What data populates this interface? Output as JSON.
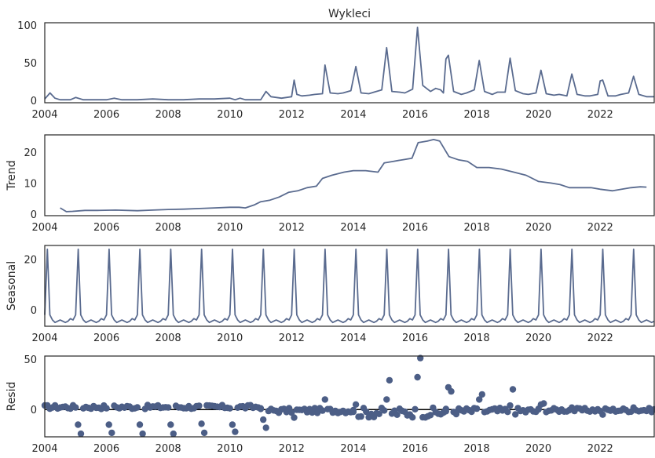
{
  "chart_data": [
    {
      "type": "line",
      "title": "Wykleci",
      "ylabel": "",
      "xlim": [
        2004.0,
        2023.75
      ],
      "ylim": [
        -3,
        103
      ],
      "yticks": [
        0,
        50,
        100
      ],
      "xticks": [
        2004,
        2006,
        2008,
        2010,
        2012,
        2014,
        2016,
        2018,
        2020,
        2022
      ],
      "x": [
        2004.0,
        2004.17,
        2004.33,
        2004.5,
        2004.67,
        2004.75,
        2004.83,
        2005.0,
        2005.25,
        2005.5,
        2005.58,
        2005.75,
        2006.0,
        2006.25,
        2006.5,
        2007.0,
        2007.5,
        2008.0,
        2008.5,
        2009.0,
        2009.5,
        2010.0,
        2010.17,
        2010.33,
        2010.5,
        2011.0,
        2011.17,
        2011.33,
        2011.67,
        2012.0,
        2012.08,
        2012.17,
        2012.33,
        2012.58,
        2012.75,
        2013.0,
        2013.08,
        2013.25,
        2013.5,
        2013.67,
        2013.92,
        2014.08,
        2014.25,
        2014.5,
        2014.67,
        2014.92,
        2015.08,
        2015.25,
        2015.5,
        2015.67,
        2015.92,
        2016.08,
        2016.25,
        2016.5,
        2016.67,
        2016.83,
        2016.92,
        2017.0,
        2017.08,
        2017.25,
        2017.5,
        2017.67,
        2017.92,
        2018.08,
        2018.25,
        2018.5,
        2018.67,
        2018.92,
        2019.08,
        2019.25,
        2019.5,
        2019.67,
        2019.92,
        2020.08,
        2020.25,
        2020.5,
        2020.67,
        2020.92,
        2021.08,
        2021.25,
        2021.5,
        2021.67,
        2021.92,
        2022.0,
        2022.08,
        2022.25,
        2022.5,
        2022.67,
        2022.92,
        2023.08,
        2023.25,
        2023.5,
        2023.75
      ],
      "y": [
        2,
        10,
        3,
        1,
        1,
        1,
        1,
        4,
        1,
        1,
        1,
        1,
        1,
        3,
        1,
        1,
        2,
        1,
        1,
        2,
        2,
        3,
        1,
        3,
        1,
        1,
        12,
        5,
        3,
        5,
        27,
        8,
        6,
        7,
        8,
        9,
        47,
        10,
        9,
        10,
        13,
        45,
        10,
        9,
        11,
        14,
        70,
        12,
        11,
        10,
        15,
        97,
        20,
        12,
        16,
        14,
        10,
        55,
        60,
        12,
        8,
        10,
        14,
        53,
        12,
        8,
        11,
        11,
        56,
        13,
        9,
        8,
        10,
        40,
        9,
        7,
        8,
        6,
        35,
        8,
        6,
        6,
        8,
        26,
        27,
        6,
        6,
        8,
        10,
        32,
        8,
        5,
        5
      ]
    },
    {
      "type": "line",
      "title": "",
      "ylabel": "Trend",
      "xlim": [
        2004.0,
        2023.75
      ],
      "ylim": [
        -0.5,
        25.5
      ],
      "yticks": [
        0,
        10,
        20
      ],
      "xticks": [
        2004,
        2006,
        2008,
        2010,
        2012,
        2014,
        2016,
        2018,
        2020,
        2022
      ],
      "x": [
        2004.5,
        2004.7,
        2004.9,
        2005.3,
        2005.7,
        2006.3,
        2007.0,
        2007.5,
        2008.0,
        2008.5,
        2009.0,
        2009.5,
        2010.0,
        2010.3,
        2010.5,
        2010.8,
        2011.0,
        2011.3,
        2011.6,
        2011.9,
        2012.2,
        2012.5,
        2012.8,
        2013.0,
        2013.3,
        2013.7,
        2014.0,
        2014.4,
        2014.8,
        2015.0,
        2015.3,
        2015.6,
        2015.9,
        2016.1,
        2016.4,
        2016.6,
        2016.8,
        2017.1,
        2017.4,
        2017.7,
        2018.0,
        2018.4,
        2018.8,
        2019.2,
        2019.6,
        2020.0,
        2020.4,
        2020.7,
        2021.0,
        2021.4,
        2021.7,
        2022.0,
        2022.4,
        2022.7,
        2023.0,
        2023.3,
        2023.5
      ],
      "y": [
        2.0,
        0.8,
        0.9,
        1.2,
        1.2,
        1.3,
        1.1,
        1.3,
        1.5,
        1.6,
        1.8,
        2.0,
        2.2,
        2.2,
        2.0,
        3.0,
        4.0,
        4.5,
        5.5,
        7.0,
        7.5,
        8.5,
        9.0,
        11.5,
        12.5,
        13.5,
        14.0,
        14.0,
        13.5,
        16.5,
        17.0,
        17.5,
        18.0,
        23.0,
        23.5,
        24.0,
        23.5,
        18.5,
        17.5,
        17.0,
        15.0,
        15.0,
        14.5,
        13.5,
        12.5,
        10.5,
        10.0,
        9.5,
        8.5,
        8.5,
        8.5,
        8.0,
        7.5,
        8.0,
        8.5,
        8.8,
        8.7
      ]
    },
    {
      "type": "line",
      "title": "",
      "ylabel": "Seasonal",
      "xlim": [
        2004.0,
        2023.75
      ],
      "ylim": [
        -6.5,
        25.5
      ],
      "yticks": [
        0,
        20
      ],
      "xticks": [
        2004,
        2006,
        2008,
        2010,
        2012,
        2014,
        2016,
        2018,
        2020,
        2022
      ],
      "pattern_period_years": 1,
      "pattern_month_values": [
        -2.0,
        24.0,
        -2.0,
        -4.0,
        -5.0,
        -4.5,
        -4.0,
        -4.5,
        -5.0,
        -4.5,
        -3.5,
        -4.0
      ]
    },
    {
      "type": "scatter",
      "title": "",
      "ylabel": "Resid",
      "xlim": [
        2004.0,
        2023.75
      ],
      "ylim": [
        -27,
        53
      ],
      "yticks": [
        0,
        50
      ],
      "xticks": [
        2004,
        2006,
        2008,
        2010,
        2012,
        2014,
        2016,
        2018,
        2020,
        2022
      ],
      "zero_line": true,
      "outliers": [
        {
          "x": 2005.08,
          "y": -15
        },
        {
          "x": 2005.17,
          "y": -24
        },
        {
          "x": 2006.08,
          "y": -15
        },
        {
          "x": 2006.17,
          "y": -23
        },
        {
          "x": 2007.08,
          "y": -15
        },
        {
          "x": 2007.17,
          "y": -24
        },
        {
          "x": 2008.08,
          "y": -15
        },
        {
          "x": 2008.17,
          "y": -24
        },
        {
          "x": 2009.08,
          "y": -14
        },
        {
          "x": 2009.17,
          "y": -23
        },
        {
          "x": 2010.08,
          "y": -15
        },
        {
          "x": 2010.17,
          "y": -22
        },
        {
          "x": 2011.08,
          "y": -10
        },
        {
          "x": 2011.17,
          "y": -18
        },
        {
          "x": 2012.08,
          "y": -8
        },
        {
          "x": 2013.08,
          "y": 10
        },
        {
          "x": 2014.08,
          "y": 5
        },
        {
          "x": 2015.08,
          "y": 10
        },
        {
          "x": 2015.17,
          "y": 29
        },
        {
          "x": 2016.08,
          "y": 32
        },
        {
          "x": 2016.17,
          "y": 51
        },
        {
          "x": 2017.08,
          "y": 22
        },
        {
          "x": 2017.17,
          "y": 18
        },
        {
          "x": 2018.08,
          "y": 10
        },
        {
          "x": 2018.17,
          "y": 15
        },
        {
          "x": 2019.08,
          "y": 4
        },
        {
          "x": 2019.17,
          "y": 20
        },
        {
          "x": 2020.08,
          "y": 5
        },
        {
          "x": 2020.17,
          "y": 6
        },
        {
          "x": 2021.08,
          "y": 2
        },
        {
          "x": 2022.08,
          "y": -5
        },
        {
          "x": 2023.08,
          "y": 2
        }
      ],
      "bulk_band": [
        {
          "from": 2004.0,
          "to": 2011.0,
          "center": 2.5,
          "spread": 2.0
        },
        {
          "from": 2011.0,
          "to": 2014.0,
          "center": -1.0,
          "spread": 2.5
        },
        {
          "from": 2014.0,
          "to": 2017.0,
          "center": -3.0,
          "spread": 5.0
        },
        {
          "from": 2017.0,
          "to": 2020.0,
          "center": -1.5,
          "spread": 3.5
        },
        {
          "from": 2020.0,
          "to": 2023.75,
          "center": -0.5,
          "spread": 2.0
        }
      ]
    }
  ]
}
